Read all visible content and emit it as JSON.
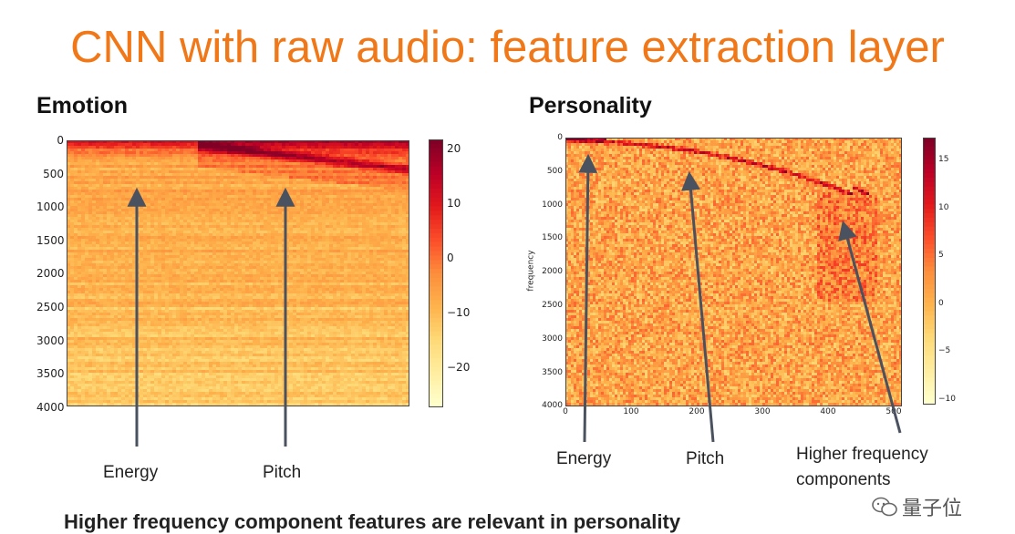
{
  "title": "CNN with raw audio: feature extraction layer",
  "panels": {
    "emotion": {
      "heading": "Emotion",
      "y_ticks": [
        "0",
        "500",
        "1000",
        "1500",
        "2000",
        "2500",
        "3000",
        "3500",
        "4000"
      ],
      "colorbar_ticks": [
        "20",
        "10",
        "0",
        "−10",
        "−20"
      ],
      "annotations": [
        "Energy",
        "Pitch"
      ]
    },
    "personality": {
      "heading": "Personality",
      "ylabel": "frequency",
      "y_ticks": [
        "0",
        "500",
        "1000",
        "1500",
        "2000",
        "2500",
        "3000",
        "3500",
        "4000"
      ],
      "x_ticks": [
        "0",
        "100",
        "200",
        "300",
        "400",
        "500"
      ],
      "colorbar_ticks": [
        "15",
        "10",
        "5",
        "0",
        "−5",
        "−10"
      ],
      "annotations": [
        "Energy",
        "Pitch",
        "Higher frequency",
        "components"
      ]
    }
  },
  "bottom_text": "Higher frequency component features are relevant in personality",
  "watermark": {
    "text": "量子位",
    "icon": "wechat-icon"
  },
  "colors": {
    "title": "#F07818",
    "colormap": "YlOrRd"
  },
  "chart_data": [
    {
      "type": "heatmap",
      "title": "Emotion",
      "colormap": "YlOrRd",
      "ylim": [
        4000,
        0
      ],
      "colorbar_range": [
        -27,
        23
      ],
      "colorbar_ticks": [
        20,
        10,
        0,
        -10,
        -20
      ],
      "annotations": [
        "Energy",
        "Pitch"
      ]
    },
    {
      "type": "heatmap",
      "title": "Personality",
      "ylabel": "frequency",
      "colormap": "YlOrRd",
      "xlim": [
        0,
        512
      ],
      "ylim": [
        4000,
        0
      ],
      "colorbar_range": [
        -11.5,
        17.5
      ],
      "colorbar_ticks": [
        15,
        10,
        5,
        0,
        -5,
        -10
      ],
      "annotations": [
        "Energy",
        "Pitch",
        "Higher frequency components"
      ]
    }
  ]
}
